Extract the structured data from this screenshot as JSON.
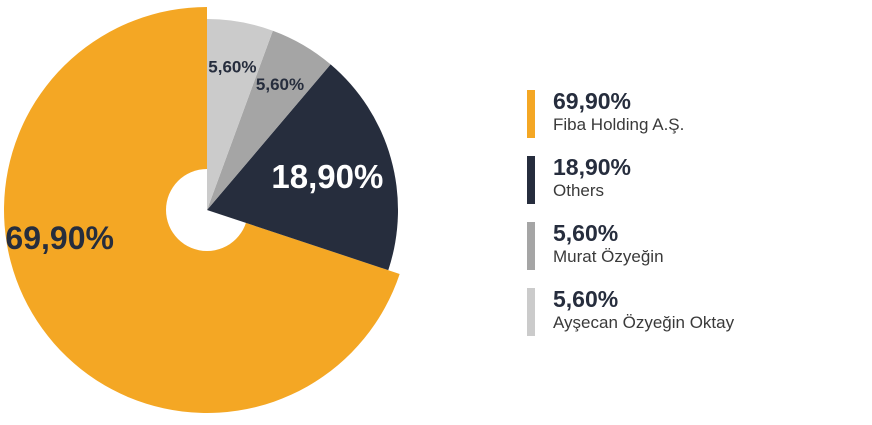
{
  "chart_data": {
    "type": "pie",
    "donut": true,
    "title": "",
    "start_angle_deg": 90,
    "direction": "counterclockwise",
    "slices": [
      {
        "label": "Fiba Holding A.Ş.",
        "value": 69.9,
        "display": "69,90%",
        "color": "#f4a724"
      },
      {
        "label": "Others",
        "value": 18.9,
        "display": "18,90%",
        "color": "#262d3d"
      },
      {
        "label": "Murat Özyeğin",
        "value": 5.6,
        "display": "5,60%",
        "color": "#a5a5a5"
      },
      {
        "label": "Ayşecan Özyeğin Oktay",
        "value": 5.6,
        "display": "5,60%",
        "color": "#cbcbcb"
      }
    ],
    "legend_position": "right"
  }
}
